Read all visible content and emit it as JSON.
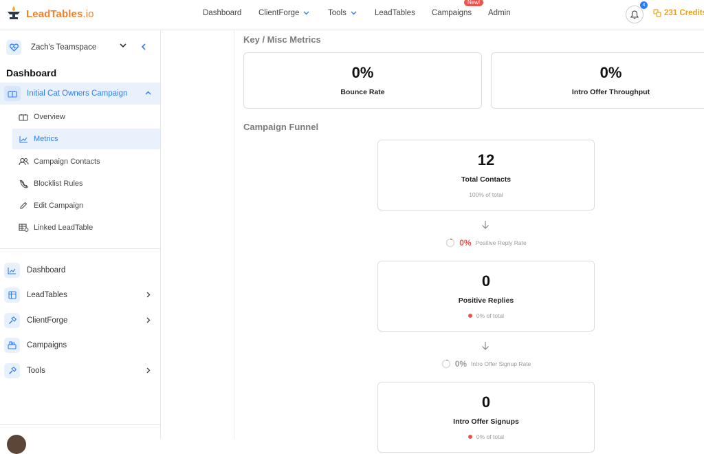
{
  "brand": {
    "name": "LeadTables",
    "tld": ".io"
  },
  "nav": {
    "items": [
      {
        "label": "Dashboard",
        "dropdown": false
      },
      {
        "label": "ClientForge",
        "dropdown": true
      },
      {
        "label": "Tools",
        "dropdown": true
      },
      {
        "label": "LeadTables",
        "dropdown": false
      },
      {
        "label": "Campaigns",
        "dropdown": false
      },
      {
        "label": "Admin",
        "dropdown": false
      }
    ],
    "new_badge": "New!",
    "notifications_count": "4",
    "credits": "231 Credits"
  },
  "sidebar": {
    "team": "Zach's Teamspace",
    "heading": "Dashboard",
    "campaign": "Initial Cat Owners Campaign",
    "sub_items": [
      {
        "label": "Overview",
        "icon": "overview-icon",
        "active": false
      },
      {
        "label": "Metrics",
        "icon": "chart-icon",
        "active": true
      },
      {
        "label": "Campaign Contacts",
        "icon": "contacts-icon",
        "active": false
      },
      {
        "label": "Blocklist Rules",
        "icon": "blocklist-icon",
        "active": false
      },
      {
        "label": "Edit Campaign",
        "icon": "pencil-icon",
        "active": false
      },
      {
        "label": "Linked LeadTable",
        "icon": "table-link-icon",
        "active": false
      }
    ],
    "main_items": [
      {
        "label": "Dashboard",
        "icon": "dashboard-icon",
        "arrow": false
      },
      {
        "label": "LeadTables",
        "icon": "table-icon",
        "arrow": true
      },
      {
        "label": "ClientForge",
        "icon": "hammer-icon",
        "arrow": true
      },
      {
        "label": "Campaigns",
        "icon": "campaigns-icon",
        "arrow": false
      },
      {
        "label": "Tools",
        "icon": "tools-icon",
        "arrow": true
      }
    ]
  },
  "main": {
    "key_metrics_title": "Key / Misc Metrics",
    "key_metrics": [
      {
        "value": "0%",
        "label": "Bounce Rate"
      },
      {
        "value": "0%",
        "label": "Intro Offer Throughput"
      }
    ],
    "funnel_title": "Campaign Funnel",
    "funnel": [
      {
        "value": "12",
        "label": "Total Contacts",
        "sub": "100% of total",
        "dot": false
      },
      {
        "value": "0",
        "label": "Positive Replies",
        "sub": "0% of total",
        "dot": true
      },
      {
        "value": "0",
        "label": "Intro Offer Signups",
        "sub": "0% of total",
        "dot": true
      }
    ],
    "rates": [
      {
        "pct": "0%",
        "label": "Positive Reply Rate",
        "color": "#ef5350"
      },
      {
        "pct": "0%",
        "label": "Intro Offer Signup Rate",
        "color": "#9e9e9e"
      }
    ]
  }
}
